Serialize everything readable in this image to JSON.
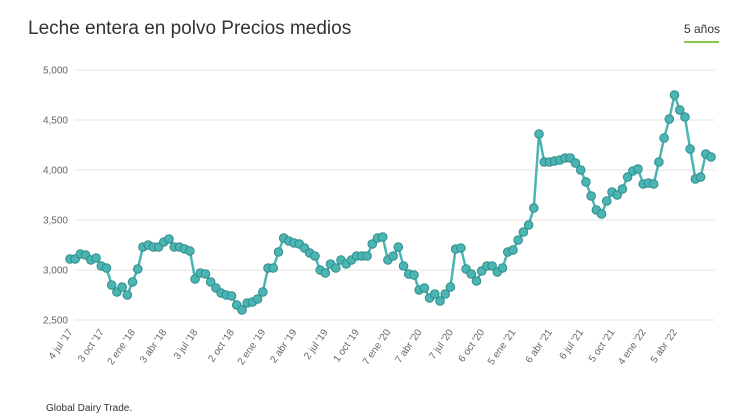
{
  "chart_data": {
    "type": "line",
    "title": "Leche entera en polvo Precios medios",
    "period_button": "5 años",
    "source": "Global Dairy Trade.",
    "color": "#4bb5b3",
    "ylim": [
      2500,
      5000
    ],
    "yticks": [
      {
        "value": 2500,
        "label": "2,500"
      },
      {
        "value": 3000,
        "label": "3,000"
      },
      {
        "value": 3500,
        "label": "3,500"
      },
      {
        "value": 4000,
        "label": "4,000"
      },
      {
        "value": 4500,
        "label": "4,500"
      },
      {
        "value": 5000,
        "label": "5,000"
      }
    ],
    "grid": true,
    "categories": [
      "4 jul '17",
      null,
      null,
      null,
      null,
      null,
      "3 oct '17",
      null,
      null,
      null,
      null,
      null,
      "2 ene '18",
      null,
      null,
      null,
      null,
      null,
      "3 abr '18",
      null,
      null,
      null,
      null,
      null,
      "3 jul '18",
      null,
      null,
      null,
      null,
      null,
      null,
      "2 oct '18",
      null,
      null,
      null,
      null,
      null,
      "2 ene '19",
      null,
      null,
      null,
      null,
      null,
      "2 abr '19",
      null,
      null,
      null,
      null,
      null,
      "2 jul '19",
      null,
      null,
      null,
      null,
      null,
      "1 oct '19",
      null,
      null,
      null,
      null,
      null,
      "7 ene '20",
      null,
      null,
      null,
      null,
      null,
      "7 abr '20",
      null,
      null,
      null,
      null,
      null,
      "7 jul '20",
      null,
      null,
      null,
      null,
      null,
      "6 oct '20",
      null,
      null,
      null,
      null,
      null,
      "5 ene '21",
      null,
      null,
      null,
      null,
      null,
      null,
      "6 abr '21",
      null,
      null,
      null,
      null,
      null,
      "6 jul '21",
      null,
      null,
      null,
      null,
      null,
      "5 oct '21",
      null,
      null,
      null,
      null,
      null,
      "4 ene '22",
      null,
      null,
      null,
      null,
      null,
      "5 abr '22",
      null,
      null,
      null,
      null,
      null,
      null,
      null
    ],
    "values": [
      3110,
      3110,
      3160,
      3150,
      3100,
      3120,
      3040,
      3020,
      2850,
      2780,
      2830,
      2750,
      2880,
      3010,
      3230,
      3250,
      3230,
      3230,
      3280,
      3310,
      3230,
      3230,
      3210,
      3190,
      2910,
      2970,
      2960,
      2880,
      2820,
      2770,
      2750,
      2740,
      2650,
      2600,
      2670,
      2680,
      2710,
      2780,
      3020,
      3020,
      3180,
      3320,
      3290,
      3270,
      3260,
      3220,
      3170,
      3140,
      3000,
      2970,
      3060,
      3020,
      3100,
      3060,
      3100,
      3140,
      3140,
      3140,
      3260,
      3320,
      3330,
      3100,
      3140,
      3230,
      3040,
      2960,
      2950,
      2800,
      2820,
      2720,
      2760,
      2690,
      2760,
      2830,
      3210,
      3220,
      3010,
      2960,
      2890,
      2990,
      3040,
      3040,
      2980,
      3020,
      3180,
      3200,
      3300,
      3380,
      3450,
      3620,
      4360,
      4080,
      4080,
      4090,
      4100,
      4120,
      4120,
      4070,
      4000,
      3880,
      3740,
      3600,
      3560,
      3690,
      3780,
      3750,
      3810,
      3930,
      3990,
      4010,
      3860,
      3870,
      3860,
      4080,
      4320,
      4510,
      4750,
      4600,
      4530,
      4210,
      3910,
      3930,
      4160,
      4130
    ]
  }
}
